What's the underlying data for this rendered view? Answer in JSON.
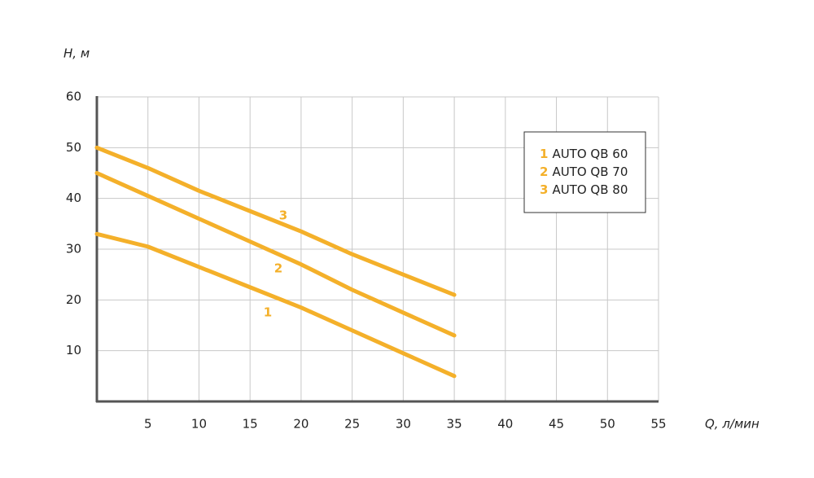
{
  "chart_data": {
    "type": "line",
    "x_label": "Q, л/мин",
    "y_label": "H, м",
    "x": [
      0,
      5,
      10,
      15,
      20,
      25,
      30,
      35
    ],
    "series": [
      {
        "name": "AUTO QB 60",
        "label": "1",
        "color": "#f4b02a",
        "values": [
          33,
          30.5,
          26.5,
          22.5,
          18.5,
          14,
          9.5,
          5
        ]
      },
      {
        "name": "AUTO QB 70",
        "label": "2",
        "color": "#f4b02a",
        "values": [
          45,
          40.5,
          36,
          31.5,
          27,
          22,
          17.5,
          13
        ]
      },
      {
        "name": "AUTO QB 80",
        "label": "3",
        "color": "#f4b02a",
        "values": [
          50,
          46,
          41.5,
          37.5,
          33.5,
          29,
          25,
          21
        ]
      }
    ],
    "xlim": [
      0,
      55
    ],
    "xticks": [
      5,
      10,
      15,
      20,
      25,
      30,
      35,
      40,
      45,
      50,
      55
    ],
    "ylim": [
      0,
      60
    ],
    "yticks": [
      10,
      20,
      30,
      40,
      50,
      60
    ],
    "grid": true,
    "legend": "upper right"
  }
}
